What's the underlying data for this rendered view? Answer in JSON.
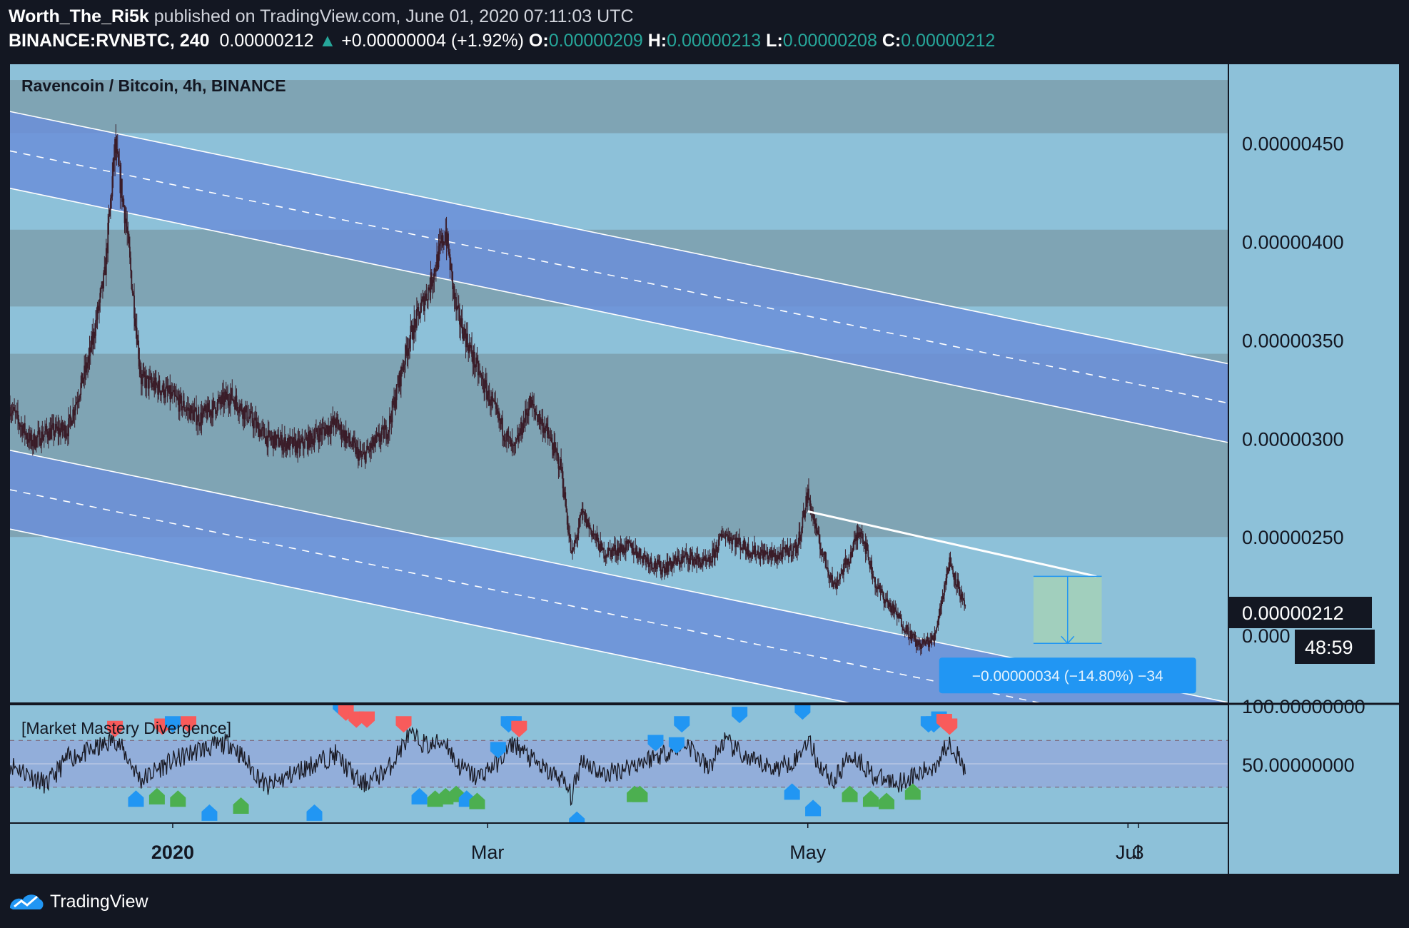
{
  "header": {
    "author": "Worth_The_Ri5k",
    "published_text": "published on TradingView.com, June 01, 2020 07:11:03 UTC",
    "symbol": "BINANCE:RVNBTC, 240",
    "last": "0.00000212",
    "change_arrow": "▲",
    "change": "+0.00000004 (+1.92%)",
    "o_label": "O:",
    "o_value": "0.00000209",
    "h_label": "H:",
    "h_value": "0.00000213",
    "l_label": "L:",
    "l_value": "0.00000208",
    "c_label": "C:",
    "c_value": "0.00000212"
  },
  "footer": {
    "brand": "TradingView",
    "logo_icon": "tradingview-logo-icon"
  },
  "colors": {
    "background": "#131722",
    "pane": "#8dc1d9",
    "zone": "#7fa4b4",
    "channel": "#6b8fd8",
    "candle": "#3a1c28",
    "measure": "#2196f3",
    "rsi_band": "#93a9d9",
    "bull_marker": "#4caf50",
    "bear_marker": "#f85b5b",
    "div_marker": "#2196f3"
  },
  "chart_data": {
    "type": "candlestick",
    "title": "Ravencoin / Bitcoin, 4h, BINANCE",
    "y_range": [
      1.66e-06,
      4.9e-06
    ],
    "y_ticks": [
      {
        "value": 4.5e-06,
        "label": "0.00000450"
      },
      {
        "value": 4e-06,
        "label": "0.00000400"
      },
      {
        "value": 3.5e-06,
        "label": "0.00000350"
      },
      {
        "value": 3e-06,
        "label": "0.00000300"
      },
      {
        "value": 2.5e-06,
        "label": "0.00000250"
      },
      {
        "value": 2e-06,
        "label": "0.000"
      }
    ],
    "x_range": [
      "2019-12-01",
      "2020-07-20"
    ],
    "x_ticks": [
      {
        "date": "2020-01-01",
        "label": "2020",
        "bold": true
      },
      {
        "date": "2020-03-01",
        "label": "Mar",
        "bold": false
      },
      {
        "date": "2020-05-01",
        "label": "May",
        "bold": false
      },
      {
        "date": "2020-07-01",
        "label": "Jul",
        "bold": false
      },
      {
        "date": "2020-07-03",
        "label": "3",
        "bold": false
      }
    ],
    "price_path": [
      {
        "date": "2019-12-01",
        "price": 3.16e-06
      },
      {
        "date": "2019-12-05",
        "price": 2.98e-06
      },
      {
        "date": "2019-12-08",
        "price": 3.03e-06
      },
      {
        "date": "2019-12-12",
        "price": 3.05e-06
      },
      {
        "date": "2019-12-16",
        "price": 3.4e-06
      },
      {
        "date": "2019-12-19",
        "price": 3.82e-06
      },
      {
        "date": "2019-12-21",
        "price": 4.48e-06
      },
      {
        "date": "2019-12-23",
        "price": 4.12e-06
      },
      {
        "date": "2019-12-26",
        "price": 3.3e-06
      },
      {
        "date": "2019-12-30",
        "price": 3.25e-06
      },
      {
        "date": "2020-01-06",
        "price": 3.1e-06
      },
      {
        "date": "2020-01-12",
        "price": 3.22e-06
      },
      {
        "date": "2020-01-19",
        "price": 3e-06
      },
      {
        "date": "2020-01-25",
        "price": 2.96e-06
      },
      {
        "date": "2020-02-01",
        "price": 3.08e-06
      },
      {
        "date": "2020-02-06",
        "price": 2.9e-06
      },
      {
        "date": "2020-02-11",
        "price": 3.05e-06
      },
      {
        "date": "2020-02-15",
        "price": 3.5e-06
      },
      {
        "date": "2020-02-19",
        "price": 3.78e-06
      },
      {
        "date": "2020-02-22",
        "price": 4.05e-06
      },
      {
        "date": "2020-02-24",
        "price": 3.65e-06
      },
      {
        "date": "2020-02-28",
        "price": 3.35e-06
      },
      {
        "date": "2020-03-03",
        "price": 3.1e-06
      },
      {
        "date": "2020-03-06",
        "price": 2.93e-06
      },
      {
        "date": "2020-03-09",
        "price": 3.18e-06
      },
      {
        "date": "2020-03-12",
        "price": 3.05e-06
      },
      {
        "date": "2020-03-15",
        "price": 2.85e-06
      },
      {
        "date": "2020-03-17",
        "price": 2.4e-06
      },
      {
        "date": "2020-03-19",
        "price": 2.62e-06
      },
      {
        "date": "2020-03-23",
        "price": 2.42e-06
      },
      {
        "date": "2020-03-28",
        "price": 2.45e-06
      },
      {
        "date": "2020-04-03",
        "price": 2.34e-06
      },
      {
        "date": "2020-04-08",
        "price": 2.4e-06
      },
      {
        "date": "2020-04-12",
        "price": 2.36e-06
      },
      {
        "date": "2020-04-15",
        "price": 2.52e-06
      },
      {
        "date": "2020-04-20",
        "price": 2.43e-06
      },
      {
        "date": "2020-04-25",
        "price": 2.4e-06
      },
      {
        "date": "2020-04-29",
        "price": 2.45e-06
      },
      {
        "date": "2020-05-01",
        "price": 2.72e-06
      },
      {
        "date": "2020-05-03",
        "price": 2.48e-06
      },
      {
        "date": "2020-05-06",
        "price": 2.25e-06
      },
      {
        "date": "2020-05-09",
        "price": 2.4e-06
      },
      {
        "date": "2020-05-11",
        "price": 2.55e-06
      },
      {
        "date": "2020-05-14",
        "price": 2.25e-06
      },
      {
        "date": "2020-05-18",
        "price": 2.1e-06
      },
      {
        "date": "2020-05-22",
        "price": 1.95e-06
      },
      {
        "date": "2020-05-25",
        "price": 1.98e-06
      },
      {
        "date": "2020-05-27",
        "price": 2.25e-06
      },
      {
        "date": "2020-05-28",
        "price": 2.38e-06
      },
      {
        "date": "2020-05-30",
        "price": 2.22e-06
      },
      {
        "date": "2020-05-31",
        "price": 2.12e-06
      }
    ],
    "sr_zones": [
      [
        4.55e-06,
        4.82e-06
      ],
      [
        3.67e-06,
        4.06e-06
      ],
      [
        2.5e-06,
        3.43e-06
      ]
    ],
    "channels": [
      {
        "start": {
          "date": "2019-12-01",
          "upper": 4.66e-06,
          "mid": 4.46e-06,
          "lower": 4.27e-06
        },
        "end": {
          "date": "2020-07-20",
          "upper": 3.38e-06,
          "mid": 3.18e-06,
          "lower": 2.98e-06
        }
      },
      {
        "start": {
          "date": "2019-12-01",
          "upper": 2.94e-06,
          "mid": 2.74e-06,
          "lower": 2.54e-06
        },
        "end": {
          "date": "2020-07-20",
          "upper": 1.66e-06,
          "mid": 1.46e-06,
          "lower": 1.26e-06
        }
      }
    ],
    "trendline": {
      "start": {
        "date": "2020-05-01",
        "price": 2.63e-06
      },
      "end": {
        "date": "2020-06-25",
        "price": 2.3e-06
      }
    },
    "measure": {
      "date_start": "2020-06-13",
      "date_end": "2020-06-26",
      "price_top": 2.3e-06,
      "price_bottom": 1.96e-06,
      "label": "−0.00000034 (−14.80%) −34"
    },
    "last_price_label": "0.00000212",
    "countdown": "48:59",
    "indicator": {
      "title": "[Market Mastery Divergence]",
      "y_range": [
        0,
        100
      ],
      "y_ticks": [
        {
          "value": 100,
          "label": "100.00000000"
        },
        {
          "value": 50,
          "label": "50.00000000"
        }
      ],
      "band": [
        30,
        70
      ],
      "midline": 50,
      "values": [
        {
          "date": "2019-12-01",
          "value": 50
        },
        {
          "date": "2019-12-05",
          "value": 40
        },
        {
          "date": "2019-12-08",
          "value": 32
        },
        {
          "date": "2019-12-12",
          "value": 55
        },
        {
          "date": "2019-12-16",
          "value": 60
        },
        {
          "date": "2019-12-19",
          "value": 66
        },
        {
          "date": "2019-12-21",
          "value": 72
        },
        {
          "date": "2019-12-23",
          "value": 58
        },
        {
          "date": "2019-12-26",
          "value": 36
        },
        {
          "date": "2019-12-30",
          "value": 48
        },
        {
          "date": "2020-01-06",
          "value": 62
        },
        {
          "date": "2020-01-12",
          "value": 68
        },
        {
          "date": "2020-01-19",
          "value": 30
        },
        {
          "date": "2020-01-25",
          "value": 44
        },
        {
          "date": "2020-02-01",
          "value": 58
        },
        {
          "date": "2020-02-06",
          "value": 32
        },
        {
          "date": "2020-02-11",
          "value": 45
        },
        {
          "date": "2020-02-15",
          "value": 74
        },
        {
          "date": "2020-02-19",
          "value": 65
        },
        {
          "date": "2020-02-22",
          "value": 70
        },
        {
          "date": "2020-02-24",
          "value": 50
        },
        {
          "date": "2020-02-28",
          "value": 38
        },
        {
          "date": "2020-03-03",
          "value": 52
        },
        {
          "date": "2020-03-06",
          "value": 68
        },
        {
          "date": "2020-03-09",
          "value": 55
        },
        {
          "date": "2020-03-12",
          "value": 44
        },
        {
          "date": "2020-03-15",
          "value": 38
        },
        {
          "date": "2020-03-17",
          "value": 22
        },
        {
          "date": "2020-03-19",
          "value": 55
        },
        {
          "date": "2020-03-23",
          "value": 40
        },
        {
          "date": "2020-03-28",
          "value": 48
        },
        {
          "date": "2020-04-03",
          "value": 58
        },
        {
          "date": "2020-04-08",
          "value": 68
        },
        {
          "date": "2020-04-12",
          "value": 45
        },
        {
          "date": "2020-04-15",
          "value": 70
        },
        {
          "date": "2020-04-20",
          "value": 52
        },
        {
          "date": "2020-04-25",
          "value": 46
        },
        {
          "date": "2020-04-29",
          "value": 55
        },
        {
          "date": "2020-05-01",
          "value": 72
        },
        {
          "date": "2020-05-03",
          "value": 50
        },
        {
          "date": "2020-05-06",
          "value": 35
        },
        {
          "date": "2020-05-09",
          "value": 58
        },
        {
          "date": "2020-05-11",
          "value": 52
        },
        {
          "date": "2020-05-14",
          "value": 38
        },
        {
          "date": "2020-05-18",
          "value": 34
        },
        {
          "date": "2020-05-22",
          "value": 40
        },
        {
          "date": "2020-05-25",
          "value": 48
        },
        {
          "date": "2020-05-27",
          "value": 62
        },
        {
          "date": "2020-05-28",
          "value": 70
        },
        {
          "date": "2020-05-30",
          "value": 52
        },
        {
          "date": "2020-05-31",
          "value": 42
        }
      ],
      "markers": [
        {
          "date": "2019-12-21",
          "type": "bear",
          "value": 80
        },
        {
          "date": "2019-12-25",
          "type": "div_low",
          "value": 20
        },
        {
          "date": "2019-12-29",
          "type": "bull",
          "value": 22
        },
        {
          "date": "2020-01-02",
          "type": "bull",
          "value": 20
        },
        {
          "date": "2019-12-30",
          "type": "bear",
          "value": 82
        },
        {
          "date": "2020-01-01",
          "type": "div_high",
          "value": 84
        },
        {
          "date": "2020-01-04",
          "type": "bear",
          "value": 84
        },
        {
          "date": "2020-01-08",
          "type": "div_low",
          "value": 8
        },
        {
          "date": "2020-01-14",
          "type": "bull",
          "value": 14
        },
        {
          "date": "2020-01-28",
          "type": "div_low",
          "value": 8
        },
        {
          "date": "2020-02-02",
          "type": "div_high",
          "value": 98
        },
        {
          "date": "2020-02-03",
          "type": "bear",
          "value": 94
        },
        {
          "date": "2020-02-05",
          "type": "bear",
          "value": 88
        },
        {
          "date": "2020-02-07",
          "type": "bear",
          "value": 88
        },
        {
          "date": "2020-02-14",
          "type": "bear",
          "value": 84
        },
        {
          "date": "2020-02-17",
          "type": "div_low",
          "value": 22
        },
        {
          "date": "2020-02-20",
          "type": "bull",
          "value": 20
        },
        {
          "date": "2020-02-22",
          "type": "bull",
          "value": 22
        },
        {
          "date": "2020-02-24",
          "type": "bull",
          "value": 24
        },
        {
          "date": "2020-02-26",
          "type": "div_low",
          "value": 20
        },
        {
          "date": "2020-02-28",
          "type": "bull",
          "value": 18
        },
        {
          "date": "2020-03-03",
          "type": "div_high",
          "value": 62
        },
        {
          "date": "2020-03-05",
          "type": "div_high",
          "value": 84
        },
        {
          "date": "2020-03-06",
          "type": "div_high",
          "value": 84
        },
        {
          "date": "2020-03-07",
          "type": "bear",
          "value": 80
        },
        {
          "date": "2020-03-18",
          "type": "div_low",
          "value": 2
        },
        {
          "date": "2020-03-29",
          "type": "bull",
          "value": 24
        },
        {
          "date": "2020-03-30",
          "type": "bull",
          "value": 24
        },
        {
          "date": "2020-04-02",
          "type": "div_high",
          "value": 68
        },
        {
          "date": "2020-04-06",
          "type": "div_high",
          "value": 66
        },
        {
          "date": "2020-04-07",
          "type": "div_high",
          "value": 84
        },
        {
          "date": "2020-04-18",
          "type": "div_high",
          "value": 92
        },
        {
          "date": "2020-04-30",
          "type": "div_high",
          "value": 95
        },
        {
          "date": "2020-04-28",
          "type": "div_low",
          "value": 26
        },
        {
          "date": "2020-05-02",
          "type": "div_low",
          "value": 12
        },
        {
          "date": "2020-05-09",
          "type": "bull",
          "value": 24
        },
        {
          "date": "2020-05-13",
          "type": "bull",
          "value": 20
        },
        {
          "date": "2020-05-16",
          "type": "bull",
          "value": 18
        },
        {
          "date": "2020-05-21",
          "type": "bull",
          "value": 26
        },
        {
          "date": "2020-05-24",
          "type": "div_high",
          "value": 84
        },
        {
          "date": "2020-05-25",
          "type": "div_high",
          "value": 84
        },
        {
          "date": "2020-05-26",
          "type": "div_high",
          "value": 88
        },
        {
          "date": "2020-05-27",
          "type": "bear",
          "value": 86
        },
        {
          "date": "2020-05-28",
          "type": "bear",
          "value": 82
        }
      ]
    }
  }
}
